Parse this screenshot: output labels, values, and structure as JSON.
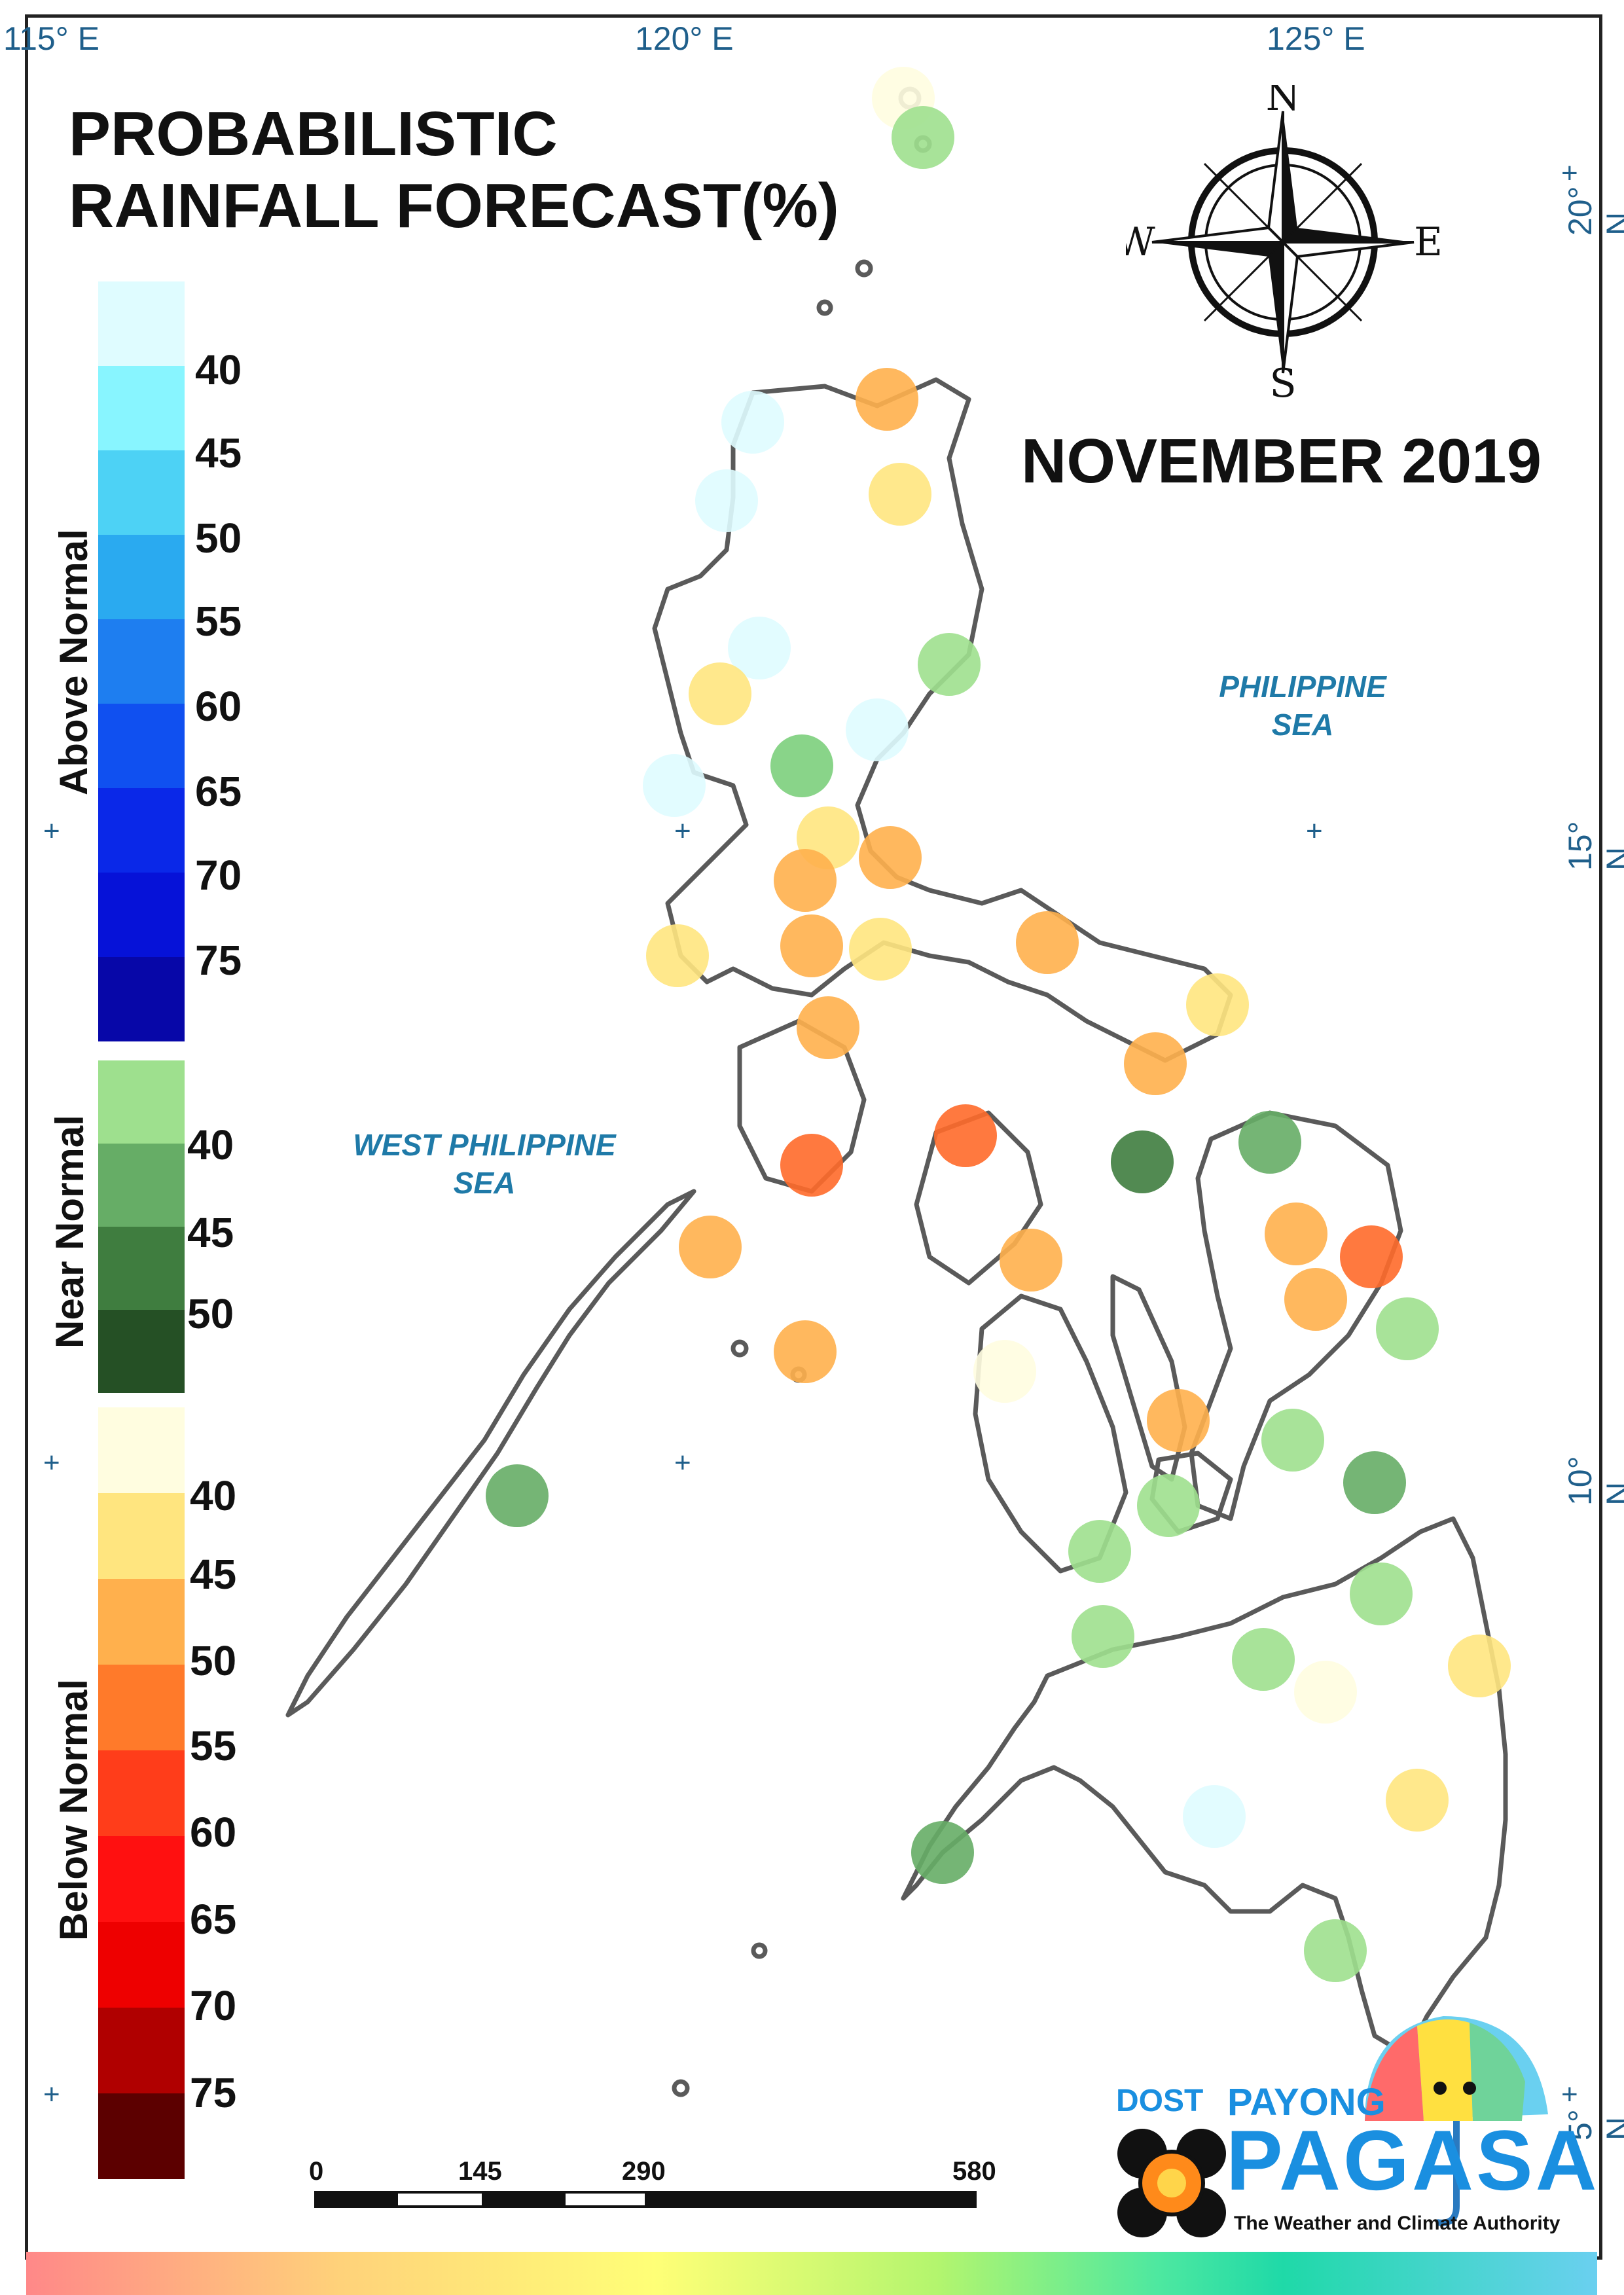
{
  "title_line1": "PROBABILISTIC",
  "title_line2": "RAINFALL FORECAST(%)",
  "month": "NOVEMBER 2019",
  "compass": {
    "n": "N",
    "s": "S",
    "e": "E",
    "w": "W"
  },
  "longitudes": [
    "115° E",
    "120° E",
    "125° E"
  ],
  "latitudes": [
    "20° N",
    "15° N",
    "10° N",
    "5° N"
  ],
  "seas": {
    "east_line1": "PHILIPPINE",
    "east_line2": "SEA",
    "west_line1": "WEST PHILIPPINE",
    "west_line2": "SEA"
  },
  "legend": {
    "above": {
      "title": "Above Normal",
      "ticks": [
        "40",
        "45",
        "50",
        "55",
        "60",
        "65",
        "70",
        "75"
      ],
      "colors": [
        "#dffcff",
        "#88f5ff",
        "#4dd2f5",
        "#2aaaf0",
        "#1e7ef0",
        "#1050f0",
        "#0a28e8",
        "#0612d8",
        "#0707a8"
      ]
    },
    "near": {
      "title": "Near Normal",
      "ticks": [
        "40",
        "45",
        "50"
      ],
      "colors": [
        "#9ee08e",
        "#66ad66",
        "#3f7d3f",
        "#255025"
      ]
    },
    "below": {
      "title": "Below Normal",
      "ticks": [
        "40",
        "45",
        "50",
        "55",
        "60",
        "65",
        "70",
        "75"
      ],
      "colors": [
        "#fffde0",
        "#ffe57f",
        "#ffb04d",
        "#ff7a2a",
        "#ff3d1a",
        "#ff1010",
        "#ee0000",
        "#b00000",
        "#5c0000"
      ]
    }
  },
  "scale": {
    "labels": [
      "0",
      "145",
      "290",
      "580"
    ]
  },
  "logo": {
    "dost": "DOST",
    "payong": "PAYONG",
    "pagasa": "PAGASA",
    "tagline": "The Weather and Climate Authority"
  },
  "stations": [
    {
      "c": "#fffde0"
    },
    {
      "c": "#9ee08e"
    },
    {
      "c": "#ffb04d"
    },
    {
      "c": "#dffcff"
    },
    {
      "c": "#ffe57f"
    },
    {
      "c": "#dffcff"
    },
    {
      "c": "#dffcff"
    },
    {
      "c": "#ffe57f"
    },
    {
      "c": "#9ee08e"
    },
    {
      "c": "#dffcff"
    },
    {
      "c": "#7ccf7c"
    },
    {
      "c": "#dffcff"
    },
    {
      "c": "#ffe57f"
    },
    {
      "c": "#ffb04d"
    },
    {
      "c": "#ffb04d"
    },
    {
      "c": "#ffb04d"
    },
    {
      "c": "#ffe57f"
    },
    {
      "c": "#ffe57f"
    },
    {
      "c": "#ffb04d"
    },
    {
      "c": "#ffb04d"
    },
    {
      "c": "#ffe57f"
    },
    {
      "c": "#ffb04d"
    },
    {
      "c": "#ff6a2a"
    },
    {
      "c": "#ff6a2a"
    },
    {
      "c": "#3f7d3f"
    },
    {
      "c": "#66ad66"
    },
    {
      "c": "#ffb04d"
    },
    {
      "c": "#ffb04d"
    },
    {
      "c": "#ff6a2a"
    },
    {
      "c": "#ffb04d"
    },
    {
      "c": "#ffb04d"
    },
    {
      "c": "#9ee08e"
    },
    {
      "c": "#ffb04d"
    },
    {
      "c": "#fffde0"
    },
    {
      "c": "#ffb04d"
    },
    {
      "c": "#9ee08e"
    },
    {
      "c": "#9ee08e"
    },
    {
      "c": "#66ad66"
    },
    {
      "c": "#9ee08e"
    },
    {
      "c": "#9ee08e"
    },
    {
      "c": "#9ee08e"
    },
    {
      "c": "#9ee08e"
    },
    {
      "c": "#ffe57f"
    },
    {
      "c": "#fffde0"
    },
    {
      "c": "#ffe57f"
    },
    {
      "c": "#dffcff"
    },
    {
      "c": "#66ad66"
    },
    {
      "c": "#9ee08e"
    },
    {
      "c": "#66ad66"
    }
  ]
}
